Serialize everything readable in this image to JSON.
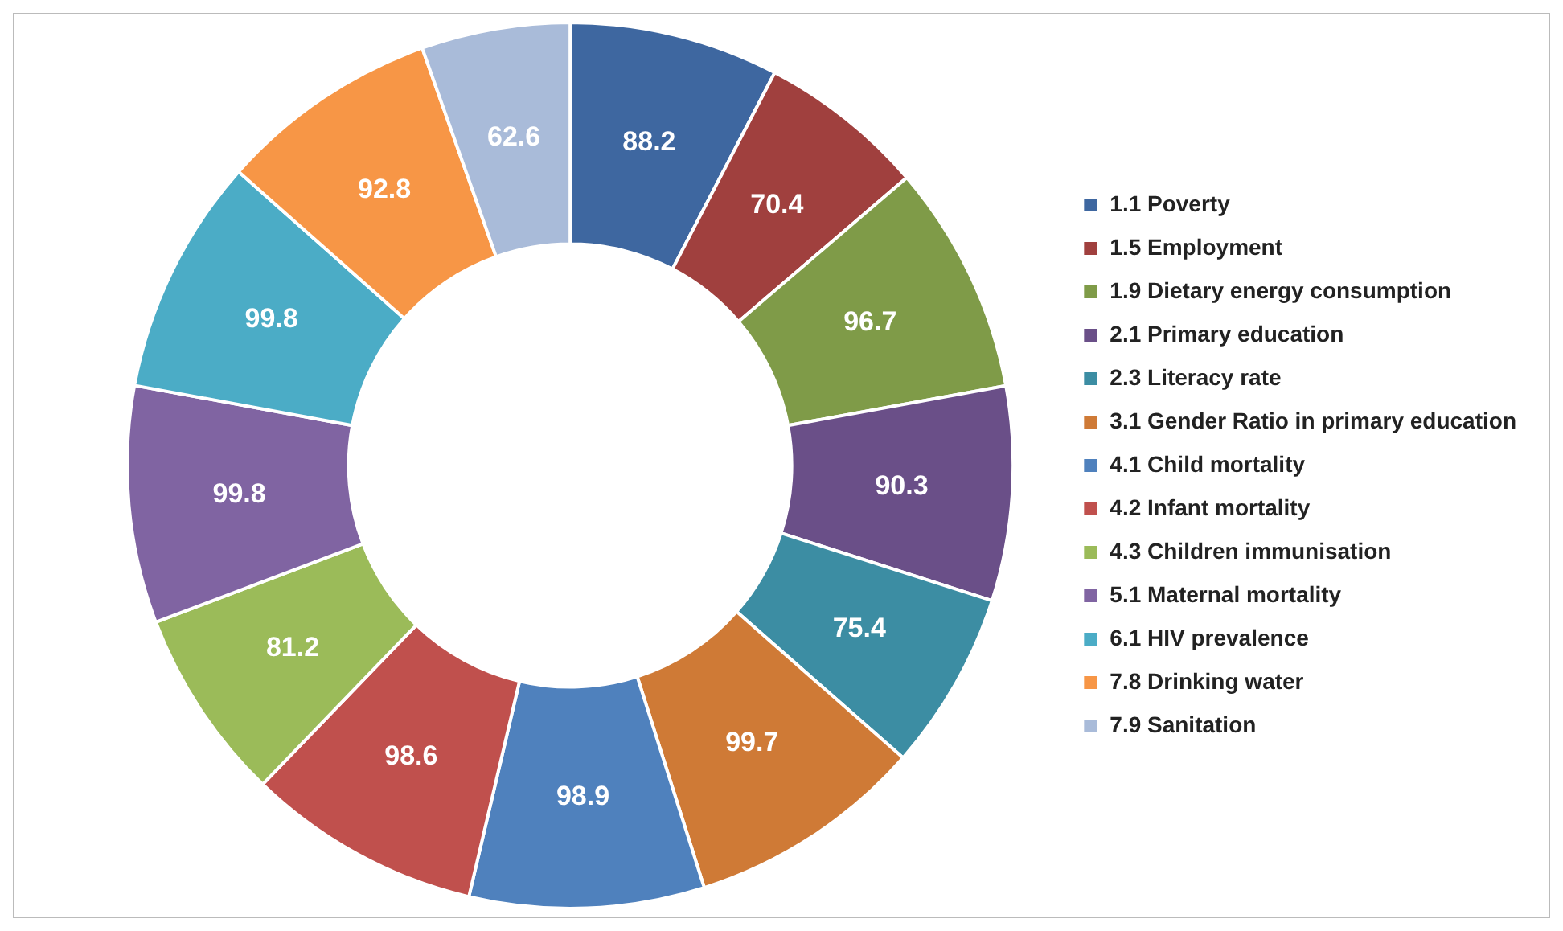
{
  "chart_data": {
    "type": "donut",
    "categories": [
      "1.1 Poverty",
      "1.5 Employment",
      "1.9 Dietary energy consumption",
      "2.1 Primary education",
      "2.3 Literacy rate",
      "3.1 Gender Ratio in primary education",
      "4.1 Child mortality",
      "4.2 Infant mortality",
      "4.3 Children immunisation",
      "5.1 Maternal mortality",
      "6.1 HIV prevalence",
      "7.8 Drinking water",
      "7.9 Sanitation"
    ],
    "values": [
      88.2,
      70.4,
      96.7,
      90.3,
      75.4,
      99.7,
      98.9,
      98.6,
      81.2,
      99.8,
      99.8,
      92.8,
      62.6
    ],
    "colors": [
      "#3e67a0",
      "#a0403e",
      "#7f9b48",
      "#6a4f88",
      "#3c8da3",
      "#cf7a36",
      "#4f81bd",
      "#c0504d",
      "#9bbb59",
      "#8064a2",
      "#4bacc6",
      "#f79646",
      "#a9bbd9"
    ],
    "legend": "right",
    "data_labels": true
  }
}
